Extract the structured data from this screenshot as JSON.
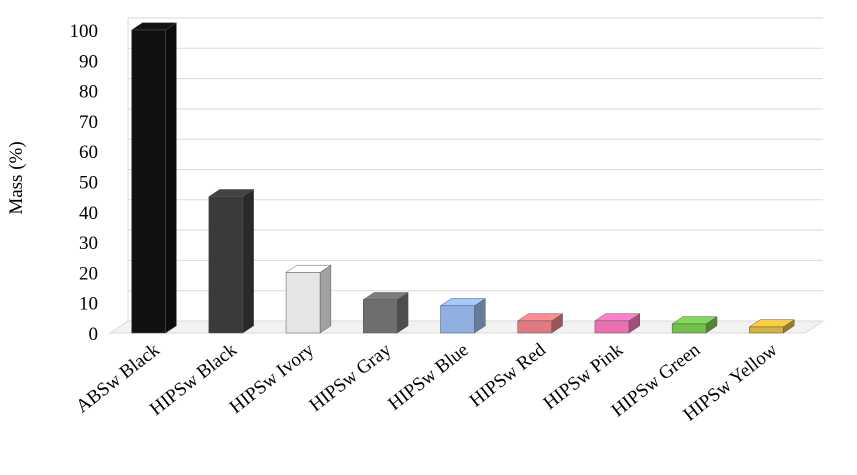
{
  "chart_data": {
    "type": "bar3d",
    "y_label": "Mass (%)",
    "categories": [
      "ABSw Black",
      "HIPSw Black",
      "HIPSw Ivory",
      "HIPSw Gray",
      "HIPSw Blue",
      "HIPSw Red",
      "HIPSw Pink",
      "HIPSw Green",
      "HIPSw Yellow"
    ],
    "values": [
      100,
      45,
      20,
      11,
      9,
      4,
      4,
      3,
      2
    ],
    "colors": [
      "#111111",
      "#3a3a3a",
      "#e6e6e6",
      "#6e6e6e",
      "#8fb0e0",
      "#e07a80",
      "#ec6fb0",
      "#6fbf4a",
      "#d9b23a"
    ],
    "ylim": [
      0,
      100
    ],
    "yticks": [
      0,
      10,
      20,
      30,
      40,
      50,
      60,
      70,
      80,
      90,
      100
    ],
    "grid": true
  }
}
